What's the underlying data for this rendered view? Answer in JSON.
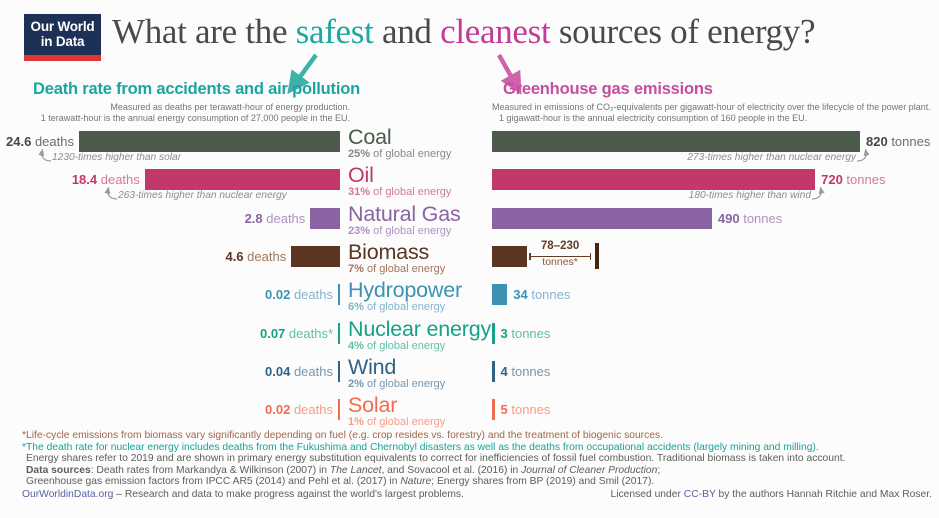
{
  "logo": {
    "line1": "Our World",
    "line2": "in Data"
  },
  "title": {
    "part1": "What are the ",
    "safest": "safest",
    "part2": " and ",
    "cleanest": "cleanest",
    "part3": " sources of energy?",
    "safest_color": "#1ba8a0",
    "cleanest_color": "#c33b98"
  },
  "left_header": {
    "title": "Death rate from accidents and air pollution",
    "subtitle1": "Measured as deaths per terawatt-hour of energy production.",
    "subtitle2": "1 terawatt-hour is the annual energy consumption of 27,000 people in the EU.",
    "accent": "#19a6a0"
  },
  "right_header": {
    "title": "Greenhouse gas emissions",
    "subtitle1": "Measured in emissions of CO₂-equivalents per gigawatt-hour of electricity over the lifecycle of the power plant.",
    "subtitle2": "1 gigawatt-hour is the annual electricity consumption of 160 people in the EU.",
    "accent": "#c74da0"
  },
  "chart_data": {
    "type": "bar",
    "orientation": "horizontal",
    "categories": [
      "Coal",
      "Oil",
      "Natural Gas",
      "Biomass",
      "Hydropower",
      "Nuclear energy",
      "Wind",
      "Solar"
    ],
    "series": [
      {
        "name": "Death rate from accidents and air pollution (deaths per terawatt-hour)",
        "values": [
          24.6,
          18.4,
          2.8,
          4.6,
          0.02,
          0.07,
          0.04,
          0.02
        ]
      },
      {
        "name": "Greenhouse gas emissions (tonnes of CO₂-equivalents per gigawatt-hour)",
        "values": [
          820,
          720,
          490,
          78,
          34,
          3,
          4,
          5
        ]
      }
    ],
    "biomass_emissions_range": [
      78,
      230
    ],
    "axis": {
      "left_max": 24.6,
      "right_max": 820,
      "grid": false
    },
    "rows": [
      {
        "id": "coal",
        "name": "Coal",
        "share_pct": "25%",
        "share_rest": " of global energy",
        "deaths": 24.6,
        "deaths_label": "24.6",
        "deaths_unit": "deaths",
        "emissions": 820,
        "emissions_label": "820",
        "emissions_unit": "tonnes",
        "color": "#4c5a4b",
        "light": "#858b81",
        "value_color": "#3f4a3e",
        "unit_color": "#6d6d6d",
        "left_annotation": "1230-times higher than solar",
        "right_annotation": "273-times higher than nuclear energy"
      },
      {
        "id": "oil",
        "name": "Oil",
        "share_pct": "31%",
        "share_rest": " of global energy",
        "deaths": 18.4,
        "deaths_label": "18.4",
        "deaths_unit": "deaths",
        "emissions": 720,
        "emissions_label": "720",
        "emissions_unit": "tonnes",
        "color": "#c2386a",
        "light": "#d3799c",
        "left_annotation": "263-times higher than nuclear energy",
        "right_annotation": "180-times higher than wind"
      },
      {
        "id": "natural-gas",
        "name": "Natural Gas",
        "share_pct": "23%",
        "share_rest": " of global energy",
        "deaths": 2.8,
        "deaths_label": "2.8",
        "deaths_unit": "deaths",
        "emissions": 490,
        "emissions_label": "490",
        "emissions_unit": "tonnes",
        "color": "#8a63a2",
        "light": "#ad92c0"
      },
      {
        "id": "biomass",
        "name": "Biomass",
        "share_pct": "7%",
        "share_rest": " of global energy",
        "deaths": 4.6,
        "deaths_label": "4.6",
        "deaths_unit": "deaths",
        "emissions": 78,
        "emissions_range": {
          "low": 78,
          "high": 230,
          "label_top": "78–230",
          "label_bottom": "tonnes*"
        },
        "color": "#5b3422",
        "light": "#a3765c"
      },
      {
        "id": "hydropower",
        "name": "Hydropower",
        "share_pct": "6%",
        "share_rest": " of global energy",
        "deaths": 0.02,
        "deaths_label": "0.02",
        "deaths_unit": "deaths",
        "emissions": 34,
        "emissions_label": "34",
        "emissions_unit": "tonnes",
        "color": "#3d92b4",
        "light": "#82b5cc"
      },
      {
        "id": "nuclear",
        "name": "Nuclear energy",
        "share_pct": "4%",
        "share_rest": " of global energy",
        "deaths": 0.07,
        "deaths_label": "0.07",
        "deaths_unit": "deaths*",
        "emissions": 3,
        "emissions_label": "3",
        "emissions_unit": "tonnes",
        "color": "#16a287",
        "light": "#5fbfa9"
      },
      {
        "id": "wind",
        "name": "Wind",
        "share_pct": "2%",
        "share_rest": " of global energy",
        "deaths": 0.04,
        "deaths_label": "0.04",
        "deaths_unit": "deaths",
        "emissions": 4,
        "emissions_label": "4",
        "emissions_unit": "tonnes",
        "color": "#2f6287",
        "light": "#7797b0"
      },
      {
        "id": "solar",
        "name": "Solar",
        "share_pct": "1%",
        "share_rest": " of global energy",
        "deaths": 0.02,
        "deaths_label": "0.02",
        "deaths_unit": "deaths",
        "emissions": 5,
        "emissions_label": "5",
        "emissions_unit": "tonnes",
        "color": "#f26b4e",
        "light": "#f89c88"
      }
    ]
  },
  "footnotes": [
    {
      "color": "brown",
      "segments": [
        {
          "t": "*Life-cycle emissions from biomass vary significantly depending on fuel (e.g. crop resides vs. forestry) and the treatment of biogenic sources."
        }
      ]
    },
    {
      "color": "teal",
      "segments": [
        {
          "t": "*The death rate for nuclear energy includes deaths from the Fukushima and Chernobyl disasters as well as the deaths from occupational accidents (largely mining and milling)."
        }
      ]
    },
    {
      "color": "gray",
      "segments": [
        {
          "t": "Energy shares refer to 2019 and are shown in primary energy substitution equivalents to correct for inefficiencies of fossil fuel combustion. Traditional biomass is taken into account."
        }
      ]
    },
    {
      "color": "gray",
      "segments": [
        {
          "t": "Data sources",
          "b": true
        },
        {
          "t": ": Death rates from Markandya & Wilkinson (2007) in "
        },
        {
          "t": "The Lancet",
          "i": true
        },
        {
          "t": ", and Sovacool et al. (2016) in "
        },
        {
          "t": "Journal of Cleaner Production",
          "i": true
        },
        {
          "t": ";"
        }
      ]
    },
    {
      "color": "gray",
      "segments": [
        {
          "t": "Greenhouse gas emission factors from IPCC AR5 (2014) and Pehl et al. (2017) in "
        },
        {
          "t": "Nature",
          "i": true
        },
        {
          "t": "; Energy shares from BP (2019) and Smil (2017)."
        }
      ]
    }
  ],
  "credit": {
    "left_segments": [
      {
        "t": "OurWorldinData.org",
        "link": true
      },
      {
        "t": " – Research and data to make progress against the world's largest problems."
      }
    ],
    "right_segments": [
      {
        "t": "Licensed under "
      },
      {
        "t": "CC-BY",
        "link": true
      },
      {
        "t": " by the authors Hannah Ritchie and Max Roser."
      }
    ]
  }
}
